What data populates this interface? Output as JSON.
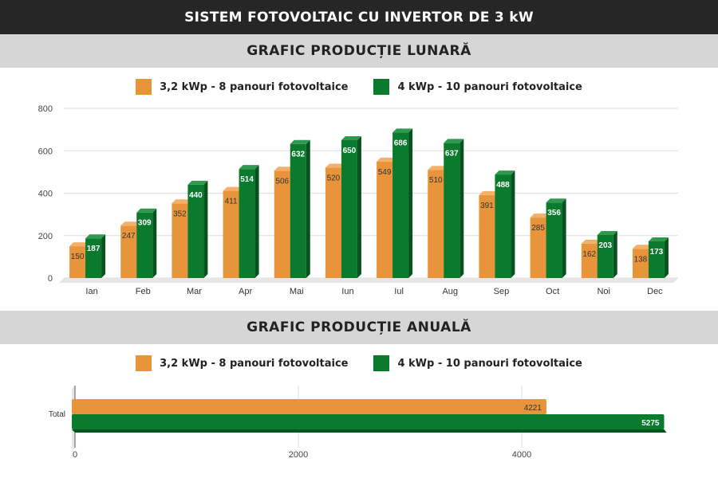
{
  "title": "SISTEM FOTOVOLTAIC CU INVERTOR DE 3 kW",
  "colors": {
    "orange": "#e8943a",
    "orange_dark": "#c9762a",
    "green": "#0a7a2c",
    "green_dark": "#06531d"
  },
  "chart_data": [
    {
      "type": "bar",
      "title": "GRAFIC PRODUCȚIE LUNARĂ",
      "categories": [
        "Ian",
        "Feb",
        "Mar",
        "Apr",
        "Mai",
        "Iun",
        "Iul",
        "Aug",
        "Sep",
        "Oct",
        "Noi",
        "Dec"
      ],
      "series": [
        {
          "name": "3,2 kWp - 8 panouri fotovoltaice",
          "values": [
            150,
            247,
            352,
            411,
            506,
            520,
            549,
            510,
            391,
            285,
            162,
            138
          ]
        },
        {
          "name": "4 kWp - 10 panouri fotovoltaice",
          "values": [
            187,
            309,
            440,
            514,
            632,
            650,
            686,
            637,
            488,
            356,
            203,
            173
          ]
        }
      ],
      "ylim": [
        0,
        800
      ],
      "yticks": [
        "0",
        "200",
        "400",
        "600",
        "800"
      ],
      "grid": true,
      "legend": "top",
      "orientation": "vertical"
    },
    {
      "type": "bar",
      "title": "GRAFIC PRODUCȚIE ANUALĂ",
      "categories": [
        "Total"
      ],
      "series": [
        {
          "name": "3,2 kWp - 8 panouri fotovoltaice",
          "values": [
            4221
          ]
        },
        {
          "name": "4 kWp - 10 panouri fotovoltaice",
          "values": [
            5275
          ]
        }
      ],
      "xlim": [
        0,
        5500
      ],
      "xticks": [
        "0",
        "2000",
        "4000"
      ],
      "grid": true,
      "legend": "top",
      "orientation": "horizontal"
    }
  ]
}
